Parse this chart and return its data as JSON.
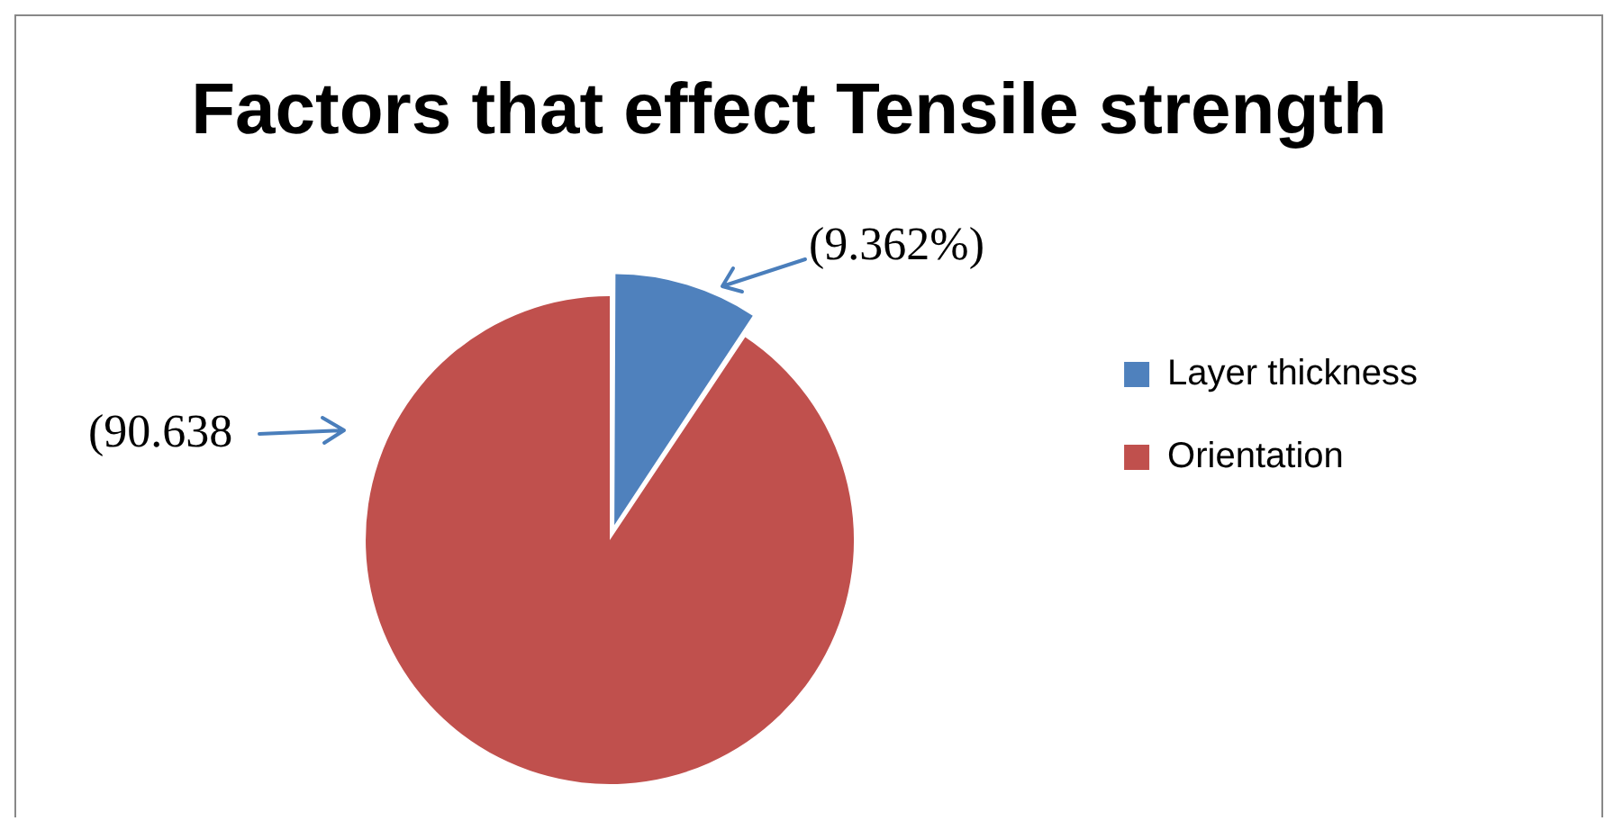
{
  "chart_data": {
    "type": "pie",
    "title": "Factors that effect Tensile strength",
    "categories": [
      "Layer thickness",
      "Orientation"
    ],
    "values": [
      9.362,
      90.638
    ],
    "colors": [
      "#4f81bd",
      "#c0504d"
    ],
    "value_labels": [
      "(9.362%)",
      "(90.638"
    ],
    "legend": "right"
  }
}
